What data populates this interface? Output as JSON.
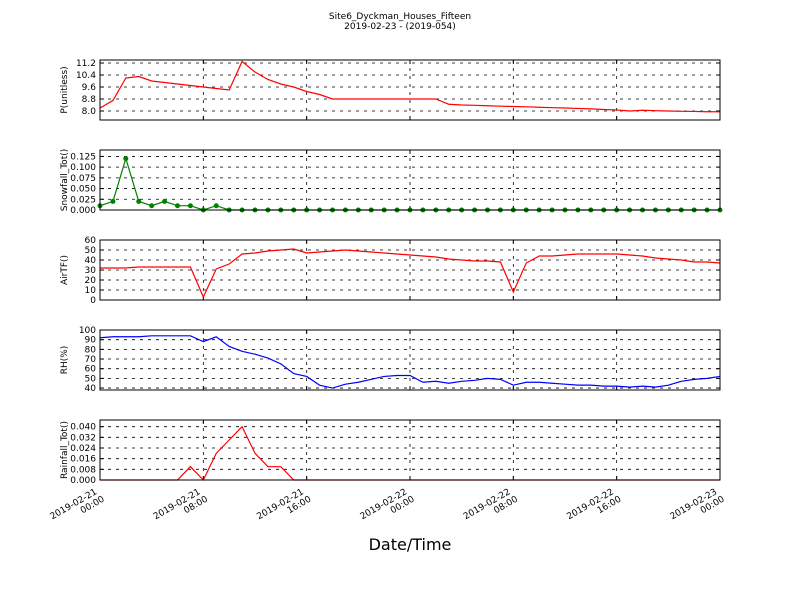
{
  "chart_data": [
    {
      "type": "line",
      "title": "Site6_Dyckman_Houses_Fifteen",
      "subtitle": "2019-02-23 - (2019-054)",
      "ylabel": "P(unitless)",
      "color": "#ff0000",
      "x": [
        "2019-02-21 00:00",
        "2019-02-21 01:00",
        "2019-02-21 02:00",
        "2019-02-21 03:00",
        "2019-02-21 04:00",
        "2019-02-21 05:00",
        "2019-02-21 06:00",
        "2019-02-21 07:00",
        "2019-02-21 08:00",
        "2019-02-21 09:00",
        "2019-02-21 10:00",
        "2019-02-21 11:00",
        "2019-02-21 12:00",
        "2019-02-21 13:00",
        "2019-02-21 14:00",
        "2019-02-21 15:00",
        "2019-02-21 16:00",
        "2019-02-21 17:00",
        "2019-02-21 18:00",
        "2019-02-21 19:00",
        "2019-02-21 20:00",
        "2019-02-21 21:00",
        "2019-02-21 22:00",
        "2019-02-21 23:00",
        "2019-02-22 00:00",
        "2019-02-22 01:00",
        "2019-02-22 02:00",
        "2019-02-22 03:00",
        "2019-02-22 04:00",
        "2019-02-22 05:00",
        "2019-02-22 06:00",
        "2019-02-22 07:00",
        "2019-02-22 08:00",
        "2019-02-22 09:00",
        "2019-02-22 10:00",
        "2019-02-22 11:00",
        "2019-02-22 12:00",
        "2019-02-22 13:00",
        "2019-02-22 14:00",
        "2019-02-22 15:00",
        "2019-02-22 16:00",
        "2019-02-22 17:00",
        "2019-02-22 18:00",
        "2019-02-22 19:00",
        "2019-02-22 20:00",
        "2019-02-22 21:00",
        "2019-02-22 22:00",
        "2019-02-22 23:00",
        "2019-02-23 00:00"
      ],
      "values": [
        8.2,
        8.7,
        10.2,
        10.3,
        10.0,
        9.9,
        9.8,
        9.7,
        9.6,
        9.5,
        9.4,
        11.3,
        10.6,
        10.1,
        9.8,
        9.6,
        9.3,
        9.1,
        8.8,
        8.8,
        8.8,
        8.8,
        8.8,
        8.8,
        8.8,
        8.8,
        8.8,
        8.45,
        8.4,
        8.38,
        8.35,
        8.32,
        8.3,
        8.28,
        8.25,
        8.22,
        8.2,
        8.17,
        8.14,
        8.1,
        8.07,
        8.0,
        8.05,
        8.02,
        8.0,
        7.98,
        7.97,
        7.95,
        7.95
      ],
      "ylim": [
        7.4,
        11.4
      ],
      "yticks": [
        {
          "value": 8,
          "label": "8.0"
        },
        8.8,
        9.6,
        10.4,
        11.2
      ],
      "grid": true
    },
    {
      "type": "line-markers",
      "ylabel": "Snowfall_Tot()",
      "color": "#008000",
      "x": [
        "2019-02-21 00:00",
        "2019-02-21 01:00",
        "2019-02-21 02:00",
        "2019-02-21 03:00",
        "2019-02-21 04:00",
        "2019-02-21 05:00",
        "2019-02-21 06:00",
        "2019-02-21 07:00",
        "2019-02-21 08:00",
        "2019-02-21 09:00",
        "2019-02-21 10:00",
        "2019-02-21 11:00",
        "2019-02-21 12:00",
        "2019-02-21 13:00",
        "2019-02-21 14:00",
        "2019-02-21 15:00",
        "2019-02-21 16:00",
        "2019-02-21 17:00",
        "2019-02-21 18:00",
        "2019-02-21 19:00",
        "2019-02-21 20:00",
        "2019-02-21 21:00",
        "2019-02-21 22:00",
        "2019-02-21 23:00",
        "2019-02-22 00:00",
        "2019-02-22 01:00",
        "2019-02-22 02:00",
        "2019-02-22 03:00",
        "2019-02-22 04:00",
        "2019-02-22 05:00",
        "2019-02-22 06:00",
        "2019-02-22 07:00",
        "2019-02-22 08:00",
        "2019-02-22 09:00",
        "2019-02-22 10:00",
        "2019-02-22 11:00",
        "2019-02-22 12:00",
        "2019-02-22 13:00",
        "2019-02-22 14:00",
        "2019-02-22 15:00",
        "2019-02-22 16:00",
        "2019-02-22 17:00",
        "2019-02-22 18:00",
        "2019-02-22 19:00",
        "2019-02-22 20:00",
        "2019-02-22 21:00",
        "2019-02-22 22:00",
        "2019-02-22 23:00",
        "2019-02-23 00:00"
      ],
      "values": [
        0.01,
        0.02,
        0.12,
        0.02,
        0.01,
        0.02,
        0.01,
        0.01,
        0,
        0.01,
        0,
        0,
        0,
        0,
        0,
        0,
        0,
        0,
        0,
        0,
        0,
        0,
        0,
        0,
        0,
        0,
        0,
        0,
        0,
        0,
        0,
        0,
        0,
        0,
        0,
        0,
        0,
        0,
        0,
        0,
        0,
        0,
        0,
        0,
        0,
        0,
        0,
        0,
        0
      ],
      "ylim": [
        0,
        0.14
      ],
      "yticks": [
        {
          "value": 0,
          "label": "0.000"
        },
        0.025,
        {
          "value": 0.05,
          "label": "0.050"
        },
        0.075,
        {
          "value": 0.1,
          "label": "0.100"
        },
        0.125
      ],
      "grid": true
    },
    {
      "type": "line",
      "ylabel": "AirTF()",
      "color": "#ff0000",
      "x": [
        "2019-02-21 00:00",
        "2019-02-21 01:00",
        "2019-02-21 02:00",
        "2019-02-21 03:00",
        "2019-02-21 04:00",
        "2019-02-21 05:00",
        "2019-02-21 06:00",
        "2019-02-21 07:00",
        "2019-02-21 08:00",
        "2019-02-21 09:00",
        "2019-02-21 10:00",
        "2019-02-21 11:00",
        "2019-02-21 12:00",
        "2019-02-21 13:00",
        "2019-02-21 14:00",
        "2019-02-21 15:00",
        "2019-02-21 16:00",
        "2019-02-21 17:00",
        "2019-02-21 18:00",
        "2019-02-21 19:00",
        "2019-02-21 20:00",
        "2019-02-21 21:00",
        "2019-02-21 22:00",
        "2019-02-21 23:00",
        "2019-02-22 00:00",
        "2019-02-22 01:00",
        "2019-02-22 02:00",
        "2019-02-22 03:00",
        "2019-02-22 04:00",
        "2019-02-22 05:00",
        "2019-02-22 06:00",
        "2019-02-22 07:00",
        "2019-02-22 08:00",
        "2019-02-22 09:00",
        "2019-02-22 10:00",
        "2019-02-22 11:00",
        "2019-02-22 12:00",
        "2019-02-22 13:00",
        "2019-02-22 14:00",
        "2019-02-22 15:00",
        "2019-02-22 16:00",
        "2019-02-22 17:00",
        "2019-02-22 18:00",
        "2019-02-22 19:00",
        "2019-02-22 20:00",
        "2019-02-22 21:00",
        "2019-02-22 22:00",
        "2019-02-22 23:00",
        "2019-02-23 00:00"
      ],
      "values": [
        32,
        32,
        32,
        33,
        33,
        33,
        33,
        33,
        3,
        31,
        36,
        46,
        47,
        49,
        50,
        51,
        47,
        48,
        49,
        50,
        49,
        48,
        47,
        46,
        45,
        44,
        43,
        41,
        40,
        39,
        39,
        38,
        8,
        37,
        44,
        44,
        45,
        46,
        46,
        46,
        46,
        45,
        44,
        42,
        41,
        40,
        38,
        38,
        37
      ],
      "ylim": [
        0,
        60
      ],
      "yticks": [
        0,
        10,
        20,
        30,
        40,
        50,
        60
      ],
      "grid": true
    },
    {
      "type": "line",
      "ylabel": "RH(%)",
      "color": "#0000ff",
      "x": [
        "2019-02-21 00:00",
        "2019-02-21 01:00",
        "2019-02-21 02:00",
        "2019-02-21 03:00",
        "2019-02-21 04:00",
        "2019-02-21 05:00",
        "2019-02-21 06:00",
        "2019-02-21 07:00",
        "2019-02-21 08:00",
        "2019-02-21 09:00",
        "2019-02-21 10:00",
        "2019-02-21 11:00",
        "2019-02-21 12:00",
        "2019-02-21 13:00",
        "2019-02-21 14:00",
        "2019-02-21 15:00",
        "2019-02-21 16:00",
        "2019-02-21 17:00",
        "2019-02-21 18:00",
        "2019-02-21 19:00",
        "2019-02-21 20:00",
        "2019-02-21 21:00",
        "2019-02-21 22:00",
        "2019-02-21 23:00",
        "2019-02-22 00:00",
        "2019-02-22 01:00",
        "2019-02-22 02:00",
        "2019-02-22 03:00",
        "2019-02-22 04:00",
        "2019-02-22 05:00",
        "2019-02-22 06:00",
        "2019-02-22 07:00",
        "2019-02-22 08:00",
        "2019-02-22 09:00",
        "2019-02-22 10:00",
        "2019-02-22 11:00",
        "2019-02-22 12:00",
        "2019-02-22 13:00",
        "2019-02-22 14:00",
        "2019-02-22 15:00",
        "2019-02-22 16:00",
        "2019-02-22 17:00",
        "2019-02-22 18:00",
        "2019-02-22 19:00",
        "2019-02-22 20:00",
        "2019-02-22 21:00",
        "2019-02-22 22:00",
        "2019-02-22 23:00",
        "2019-02-23 00:00"
      ],
      "values": [
        92,
        93,
        93,
        93,
        94,
        94,
        94,
        94,
        88,
        93,
        83,
        78,
        75,
        71,
        65,
        55,
        52,
        43,
        40,
        44,
        46,
        49,
        52,
        53,
        53,
        46,
        47,
        45,
        47,
        48,
        50,
        49,
        43,
        46,
        46,
        45,
        44,
        43,
        43,
        42,
        42,
        41,
        42,
        41,
        43,
        47,
        49,
        50,
        52
      ],
      "ylim": [
        38,
        100
      ],
      "yticks": [
        40,
        50,
        60,
        70,
        80,
        90,
        100
      ],
      "grid": true
    },
    {
      "type": "line",
      "ylabel": "Rainfall_Tot()",
      "xlabel": "Date/Time",
      "color": "#ff0000",
      "x": [
        "2019-02-21 00:00",
        "2019-02-21 01:00",
        "2019-02-21 02:00",
        "2019-02-21 03:00",
        "2019-02-21 04:00",
        "2019-02-21 05:00",
        "2019-02-21 06:00",
        "2019-02-21 07:00",
        "2019-02-21 08:00",
        "2019-02-21 09:00",
        "2019-02-21 10:00",
        "2019-02-21 11:00",
        "2019-02-21 12:00",
        "2019-02-21 13:00",
        "2019-02-21 14:00",
        "2019-02-21 15:00",
        "2019-02-21 16:00",
        "2019-02-21 17:00",
        "2019-02-21 18:00",
        "2019-02-21 19:00",
        "2019-02-21 20:00",
        "2019-02-21 21:00",
        "2019-02-21 22:00",
        "2019-02-21 23:00",
        "2019-02-22 00:00",
        "2019-02-22 01:00",
        "2019-02-22 02:00",
        "2019-02-22 03:00",
        "2019-02-22 04:00",
        "2019-02-22 05:00",
        "2019-02-22 06:00",
        "2019-02-22 07:00",
        "2019-02-22 08:00",
        "2019-02-22 09:00",
        "2019-02-22 10:00",
        "2019-02-22 11:00",
        "2019-02-22 12:00",
        "2019-02-22 13:00",
        "2019-02-22 14:00",
        "2019-02-22 15:00",
        "2019-02-22 16:00",
        "2019-02-22 17:00",
        "2019-02-22 18:00",
        "2019-02-22 19:00",
        "2019-02-22 20:00",
        "2019-02-22 21:00",
        "2019-02-22 22:00",
        "2019-02-22 23:00",
        "2019-02-23 00:00"
      ],
      "values": [
        0,
        0,
        0,
        0,
        0,
        0,
        0,
        0.01,
        0,
        0.02,
        0.03,
        0.04,
        0.02,
        0.01,
        0.01,
        0,
        0,
        0,
        0,
        0,
        0,
        0,
        0,
        0,
        0,
        0,
        0,
        0,
        0,
        0,
        0,
        0,
        0,
        0,
        0,
        0,
        0,
        0,
        0,
        0,
        0,
        0,
        0,
        0,
        0,
        0,
        0,
        0,
        0
      ],
      "ylim": [
        0,
        0.045
      ],
      "yticks": [
        {
          "value": 0,
          "label": "0.000"
        },
        0.008,
        0.016,
        0.024,
        0.032,
        {
          "value": 0.04,
          "label": "0.040"
        }
      ],
      "grid": true,
      "xlim": [
        "2019-02-21 00:00",
        "2019-02-23 00:00"
      ],
      "xticks": [
        "2019-02-21 00:00",
        "2019-02-21 08:00",
        "2019-02-21 16:00",
        "2019-02-22 00:00",
        "2019-02-22 08:00",
        "2019-02-22 16:00",
        "2019-02-23 00:00"
      ]
    }
  ]
}
